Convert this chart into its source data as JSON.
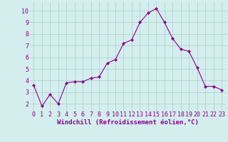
{
  "x": [
    0,
    1,
    2,
    3,
    4,
    5,
    6,
    7,
    8,
    9,
    10,
    11,
    12,
    13,
    14,
    15,
    16,
    17,
    18,
    19,
    20,
    21,
    22,
    23
  ],
  "y": [
    3.6,
    1.8,
    2.8,
    2.0,
    3.8,
    3.9,
    3.9,
    4.2,
    4.3,
    5.5,
    5.8,
    7.2,
    7.5,
    9.0,
    9.8,
    10.2,
    9.0,
    7.6,
    6.7,
    6.5,
    5.1,
    3.5,
    3.5,
    3.2
  ],
  "line_color": "#8B008B",
  "marker": "D",
  "marker_size": 2,
  "bg_color": "#d4eeee",
  "grid_color": "#aacccc",
  "xlabel": "Windchill (Refroidissement éolien,°C)",
  "xlabel_color": "#8B008B",
  "xlabel_fontsize": 6.5,
  "tick_color": "#8B008B",
  "tick_fontsize": 6,
  "xlim": [
    -0.5,
    23.5
  ],
  "ylim": [
    1.4,
    10.8
  ],
  "yticks": [
    2,
    3,
    4,
    5,
    6,
    7,
    8,
    9,
    10
  ],
  "xticks": [
    0,
    1,
    2,
    3,
    4,
    5,
    6,
    7,
    8,
    9,
    10,
    11,
    12,
    13,
    14,
    15,
    16,
    17,
    18,
    19,
    20,
    21,
    22,
    23
  ]
}
